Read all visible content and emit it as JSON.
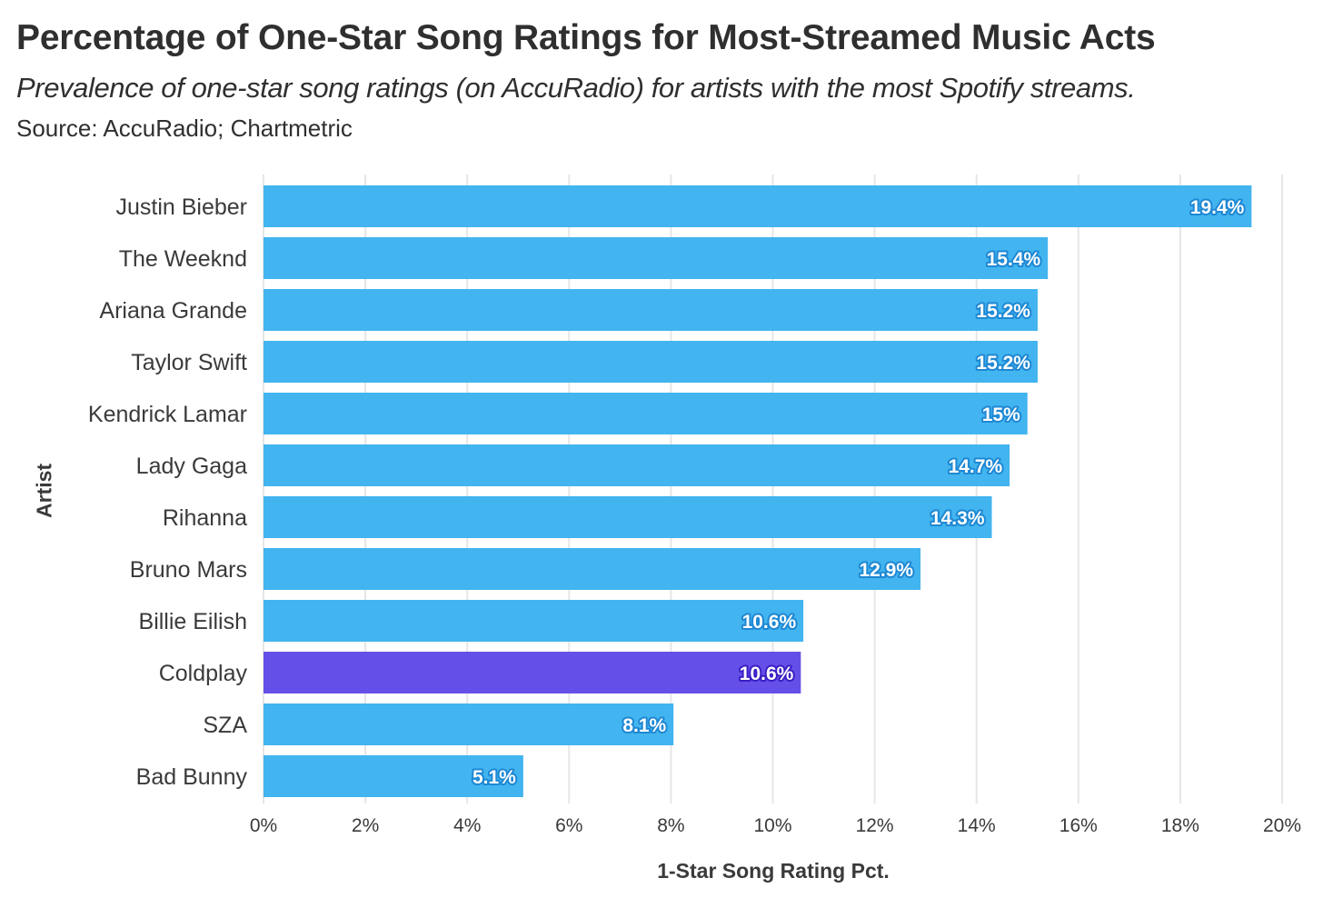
{
  "chart_data": {
    "type": "bar",
    "orientation": "horizontal",
    "title": "Percentage of One-Star Song Ratings for Most-Streamed Music Acts",
    "subtitle": "Prevalence of one-star song ratings (on AccuRadio) for artists with the most Spotify streams.",
    "source": "Source: AccuRadio; Chartmetric",
    "xlabel": "1-Star Song Rating Pct.",
    "ylabel": "Artist",
    "xlim": [
      0,
      20
    ],
    "x_ticks": [
      "0%",
      "2%",
      "4%",
      "6%",
      "8%",
      "10%",
      "12%",
      "14%",
      "16%",
      "18%",
      "20%"
    ],
    "grid": true,
    "categories": [
      "Justin Bieber",
      "The Weeknd",
      "Ariana Grande",
      "Taylor Swift",
      "Kendrick Lamar",
      "Lady Gaga",
      "Rihanna",
      "Bruno Mars",
      "Billie Eilish",
      "Coldplay",
      "SZA",
      "Bad Bunny"
    ],
    "values": [
      19.4,
      15.4,
      15.2,
      15.2,
      15.0,
      14.65,
      14.3,
      12.9,
      10.6,
      10.55,
      8.05,
      5.1
    ],
    "data_labels": [
      "19.4%",
      "15.4%",
      "15.2%",
      "15.2%",
      "15%",
      "14.7%",
      "14.3%",
      "12.9%",
      "10.6%",
      "10.6%",
      "8.1%",
      "5.1%"
    ],
    "highlight": "Coldplay",
    "colors": {
      "default_bar": "#42b4ef",
      "highlight_bar": "#6450e8",
      "default_label_outline": "#1e88d4",
      "highlight_label_outline": "#3b1fc4"
    }
  }
}
